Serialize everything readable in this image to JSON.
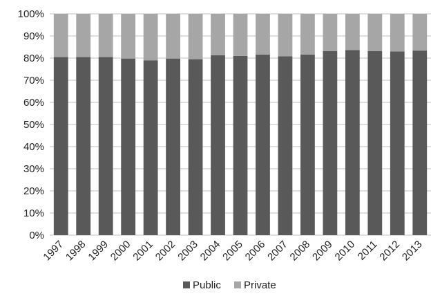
{
  "chart_data": {
    "type": "bar",
    "stacked": true,
    "percent_stacked": true,
    "categories": [
      "1997",
      "1998",
      "1999",
      "2000",
      "2001",
      "2002",
      "2003",
      "2004",
      "2005",
      "2006",
      "2007",
      "2008",
      "2009",
      "2010",
      "2011",
      "2012",
      "2013"
    ],
    "series": [
      {
        "name": "Public",
        "color": "#595959",
        "values": [
          80.5,
          80.5,
          80.5,
          79.8,
          79,
          79.8,
          79.5,
          81.3,
          81,
          81.6,
          80.8,
          81.6,
          83.2,
          83.6,
          83.2,
          83,
          83.4
        ]
      },
      {
        "name": "Private",
        "color": "#a6a6a6",
        "values": [
          19.5,
          19.5,
          19.5,
          20.2,
          21,
          20.2,
          20.5,
          18.7,
          19,
          18.4,
          19.2,
          18.4,
          16.8,
          16.4,
          16.8,
          17,
          16.6
        ]
      }
    ],
    "y_ticks": [
      "0%",
      "10%",
      "20%",
      "30%",
      "40%",
      "50%",
      "60%",
      "70%",
      "80%",
      "90%",
      "100%"
    ],
    "ylim": [
      0,
      100
    ],
    "grid": true,
    "legend_position": "bottom"
  }
}
